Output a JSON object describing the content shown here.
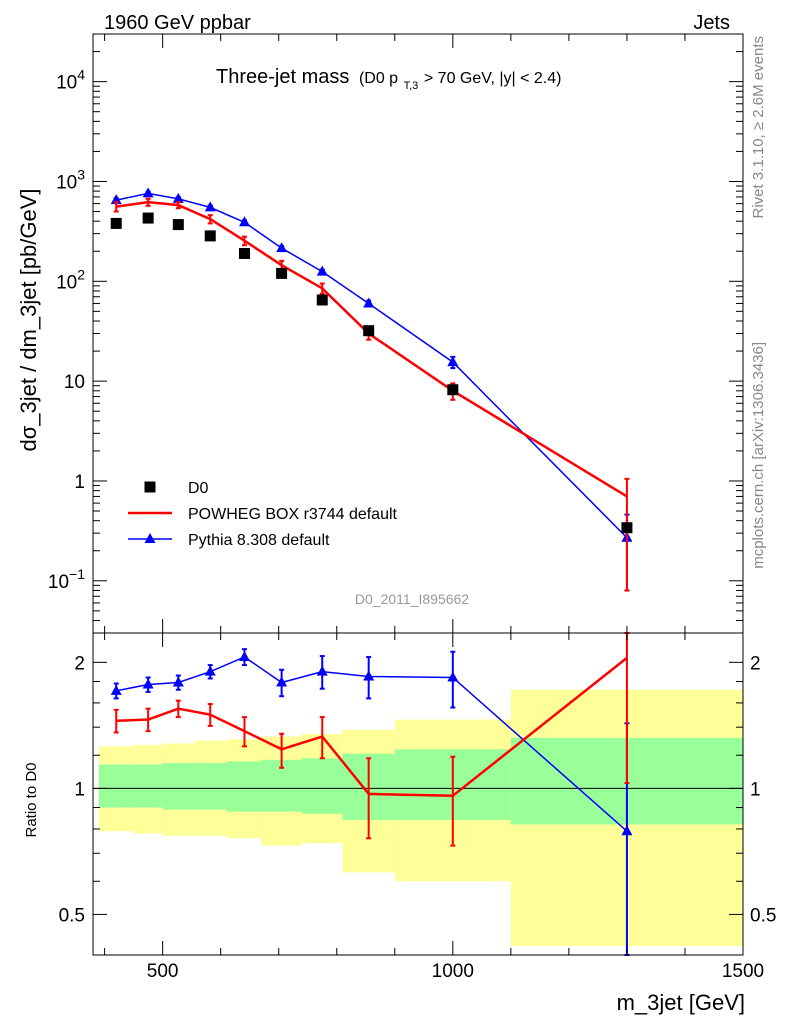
{
  "header": {
    "energy": "1960 GeV ppbar",
    "process": "Jets"
  },
  "side_labels": {
    "rivet": "Rivet 3.1.10, ≥ 2.6M events",
    "mcplots": "mcplots.cern.ch [arXiv:1306.3436]"
  },
  "plot_title": {
    "main": "Three-jet mass",
    "sub_prefix": "(D0 p",
    "sub_subscript": "T,3",
    "sub_suffix": " > 70 GeV, |y| < 2.4)"
  },
  "analysis_id": "D0_2011_I895662",
  "chart_data": [
    {
      "type": "scatter",
      "panel": "main",
      "title": "Three-jet mass",
      "xlabel": "m_3jet [GeV]",
      "ylabel": "dσ_3jet / dm_3jet [pb/GeV]",
      "yscale": "log",
      "xlim": [
        380,
        1500
      ],
      "ylim": [
        0.03,
        30000
      ],
      "y_tick_labels": [
        "10^-1",
        "1",
        "10",
        "10^2",
        "10^3",
        "10^4"
      ],
      "x_tick_labels": [
        "500",
        "1000",
        "1500"
      ],
      "legend_position": "bottom-left",
      "series": [
        {
          "name": "D0",
          "style": "markers",
          "marker": "square",
          "color": "#000000",
          "x": [
            420,
            475,
            527,
            582,
            641,
            705,
            775,
            855,
            1000,
            1300
          ],
          "y": [
            380,
            430,
            370,
            285,
            190,
            120,
            65,
            32,
            8.2,
            0.34
          ]
        },
        {
          "name": "POWHEG BOX r3744 default",
          "style": "line",
          "color": "#ff0000",
          "x": [
            420,
            475,
            527,
            582,
            641,
            705,
            775,
            855,
            1000,
            1300
          ],
          "y": [
            560,
            620,
            580,
            420,
            255,
            145,
            85,
            30,
            8.0,
            0.7
          ],
          "err_low": [
            500,
            570,
            540,
            380,
            230,
            130,
            75,
            26,
            6.5,
            0.08
          ],
          "err_high": [
            620,
            670,
            620,
            460,
            280,
            160,
            95,
            35,
            9.5,
            1.05
          ]
        },
        {
          "name": "Pythia 8.308 default",
          "style": "line+markers",
          "marker": "triangle",
          "color": "#0000ff",
          "x": [
            420,
            475,
            527,
            582,
            641,
            705,
            775,
            855,
            1000,
            1300
          ],
          "y": [
            650,
            760,
            670,
            550,
            390,
            215,
            125,
            60,
            15.5,
            0.27
          ],
          "err_low": [
            620,
            730,
            645,
            525,
            372,
            205,
            119,
            56,
            13.5,
            0.08
          ],
          "err_high": [
            680,
            790,
            695,
            575,
            408,
            225,
            131,
            64,
            17.5,
            0.46
          ]
        }
      ]
    },
    {
      "type": "line",
      "panel": "ratio",
      "xlabel": "m_3jet [GeV]",
      "ylabel": "Ratio to D0",
      "yscale": "log",
      "xlim": [
        380,
        1500
      ],
      "ylim": [
        0.4,
        2.35
      ],
      "y_tick_labels": [
        "0.5",
        "1",
        "2"
      ],
      "x_tick_labels": [
        "500",
        "1000",
        "1500"
      ],
      "reference_line": 1,
      "bands": {
        "edges": [
          390,
          450,
          500,
          555,
          610,
          670,
          740,
          810,
          900,
          1100,
          1500
        ],
        "inner_low": [
          0.9,
          0.9,
          0.89,
          0.89,
          0.88,
          0.88,
          0.87,
          0.84,
          0.84,
          0.82
        ],
        "inner_high": [
          1.14,
          1.14,
          1.15,
          1.15,
          1.16,
          1.17,
          1.18,
          1.21,
          1.24,
          1.32
        ],
        "outer_low": [
          0.79,
          0.78,
          0.77,
          0.77,
          0.76,
          0.73,
          0.74,
          0.63,
          0.6,
          0.42
        ],
        "outer_high": [
          1.26,
          1.27,
          1.28,
          1.3,
          1.31,
          1.33,
          1.35,
          1.38,
          1.46,
          1.72
        ],
        "inner_color": "#99ff99",
        "outer_color": "#ffff99"
      },
      "series": [
        {
          "name": "POWHEG BOX r3744 default",
          "color": "#ff0000",
          "x": [
            420,
            475,
            527,
            582,
            641,
            705,
            775,
            855,
            1000,
            1300
          ],
          "y": [
            1.45,
            1.46,
            1.55,
            1.5,
            1.37,
            1.24,
            1.33,
            0.97,
            0.96,
            2.05
          ],
          "err_low": [
            1.36,
            1.37,
            1.48,
            1.41,
            1.26,
            1.12,
            1.18,
            0.76,
            0.73,
            1.03
          ],
          "err_high": [
            1.54,
            1.55,
            1.62,
            1.59,
            1.48,
            1.35,
            1.48,
            1.18,
            1.19,
            2.4
          ]
        },
        {
          "name": "Pythia 8.308 default",
          "color": "#0000ff",
          "x": [
            420,
            475,
            527,
            582,
            641,
            705,
            775,
            855,
            1000,
            1300
          ],
          "y": [
            1.71,
            1.77,
            1.79,
            1.9,
            2.06,
            1.79,
            1.9,
            1.85,
            1.84,
            0.79
          ],
          "err_low": [
            1.64,
            1.7,
            1.72,
            1.83,
            1.97,
            1.66,
            1.73,
            1.64,
            1.56,
            0.35
          ],
          "err_high": [
            1.78,
            1.84,
            1.86,
            1.97,
            2.15,
            1.92,
            2.07,
            2.06,
            2.12,
            1.43
          ]
        }
      ]
    }
  ]
}
